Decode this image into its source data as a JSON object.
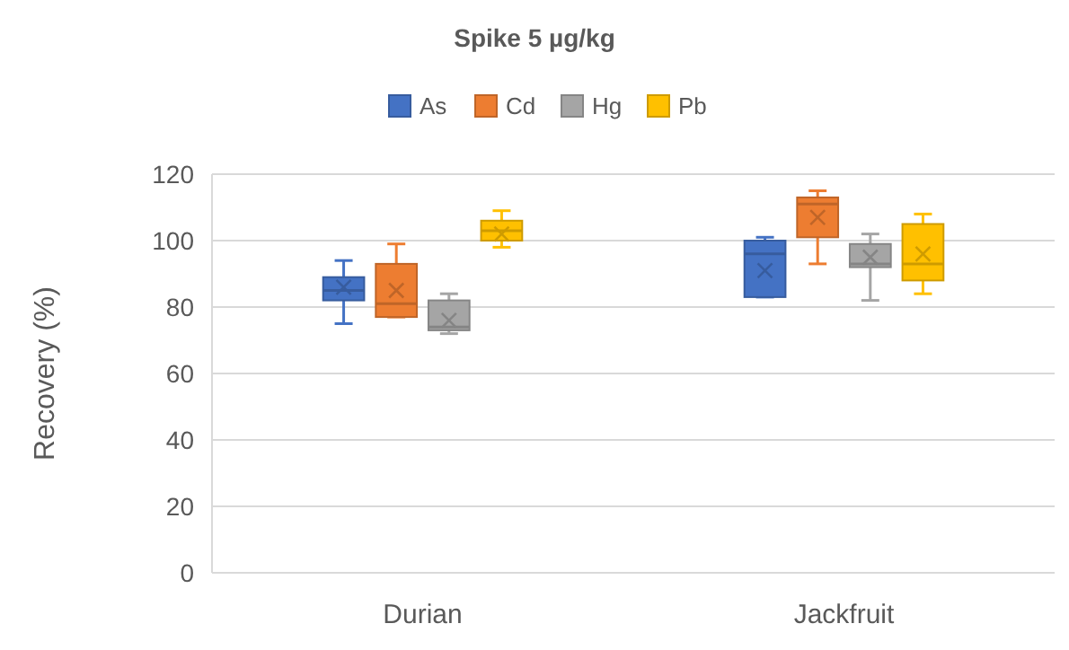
{
  "chart_data": {
    "type": "box",
    "title": "Spike 5 µg/kg",
    "ylabel": "Recovery (%)",
    "categories": [
      "Durian",
      "Jackfruit"
    ],
    "ylim": [
      0,
      120
    ],
    "yticks": [
      0,
      20,
      40,
      60,
      80,
      100,
      120
    ],
    "grid": "y",
    "legend": "top",
    "series": [
      {
        "name": "As",
        "color": "#4472c4",
        "boxes": [
          {
            "low": 75,
            "q1": 82,
            "median": 85,
            "q3": 89,
            "high": 94,
            "mean": 86
          },
          {
            "low": 83,
            "q1": 83,
            "median": 96,
            "q3": 100,
            "high": 101,
            "mean": 91
          }
        ]
      },
      {
        "name": "Cd",
        "color": "#ed7d31",
        "boxes": [
          {
            "low": 77,
            "q1": 77,
            "median": 81,
            "q3": 93,
            "high": 99,
            "mean": 85
          },
          {
            "low": 93,
            "q1": 101,
            "median": 111,
            "q3": 113,
            "high": 115,
            "mean": 107
          }
        ]
      },
      {
        "name": "Hg",
        "color": "#a5a5a5",
        "boxes": [
          {
            "low": 72,
            "q1": 73,
            "median": 74,
            "q3": 82,
            "high": 84,
            "mean": 76
          },
          {
            "low": 82,
            "q1": 92,
            "median": 93,
            "q3": 99,
            "high": 102,
            "mean": 95
          }
        ]
      },
      {
        "name": "Pb",
        "color": "#ffc000",
        "boxes": [
          {
            "low": 98,
            "q1": 100,
            "median": 103,
            "q3": 106,
            "high": 109,
            "mean": 102
          },
          {
            "low": 84,
            "q1": 88,
            "median": 93,
            "q3": 105,
            "high": 108,
            "mean": 96
          }
        ]
      }
    ]
  }
}
